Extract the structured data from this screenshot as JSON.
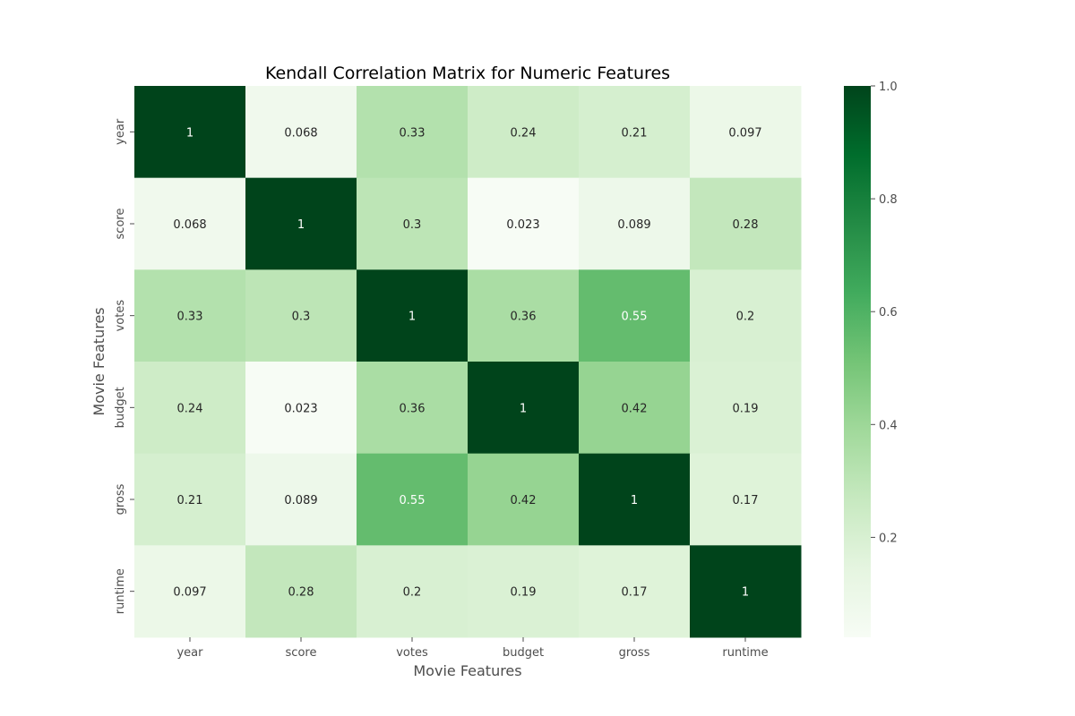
{
  "chart_data": {
    "type": "heatmap",
    "title": "Kendall Correlation Matrix for Numeric Features",
    "xlabel": "Movie Features",
    "ylabel": "Movie Features",
    "x_categories": [
      "year",
      "score",
      "votes",
      "budget",
      "gross",
      "runtime"
    ],
    "y_categories": [
      "year",
      "score",
      "votes",
      "budget",
      "gross",
      "runtime"
    ],
    "values": [
      [
        1,
        0.068,
        0.33,
        0.24,
        0.21,
        0.097
      ],
      [
        0.068,
        1,
        0.3,
        0.023,
        0.089,
        0.28
      ],
      [
        0.33,
        0.3,
        1,
        0.36,
        0.55,
        0.2
      ],
      [
        0.24,
        0.023,
        0.36,
        1,
        0.42,
        0.19
      ],
      [
        0.21,
        0.089,
        0.55,
        0.42,
        1,
        0.17
      ],
      [
        0.097,
        0.28,
        0.2,
        0.19,
        0.17,
        1
      ]
    ],
    "value_labels": [
      [
        "1",
        "0.068",
        "0.33",
        "0.24",
        "0.21",
        "0.097"
      ],
      [
        "0.068",
        "1",
        "0.3",
        "0.023",
        "0.089",
        "0.28"
      ],
      [
        "0.33",
        "0.3",
        "1",
        "0.36",
        "0.55",
        "0.2"
      ],
      [
        "0.24",
        "0.023",
        "0.36",
        "1",
        "0.42",
        "0.19"
      ],
      [
        "0.21",
        "0.089",
        "0.55",
        "0.42",
        "1",
        "0.17"
      ],
      [
        "0.097",
        "0.28",
        "0.2",
        "0.19",
        "0.17",
        "1"
      ]
    ],
    "colormap": "Greens",
    "colorbar": {
      "range": [
        0.023,
        1
      ],
      "ticks": [
        0.2,
        0.4,
        0.6,
        0.8,
        1.0
      ],
      "tick_labels": [
        "0.2",
        "0.4",
        "0.6",
        "0.8",
        "1.0"
      ]
    },
    "grid": false,
    "legend": "colorbar-right"
  }
}
